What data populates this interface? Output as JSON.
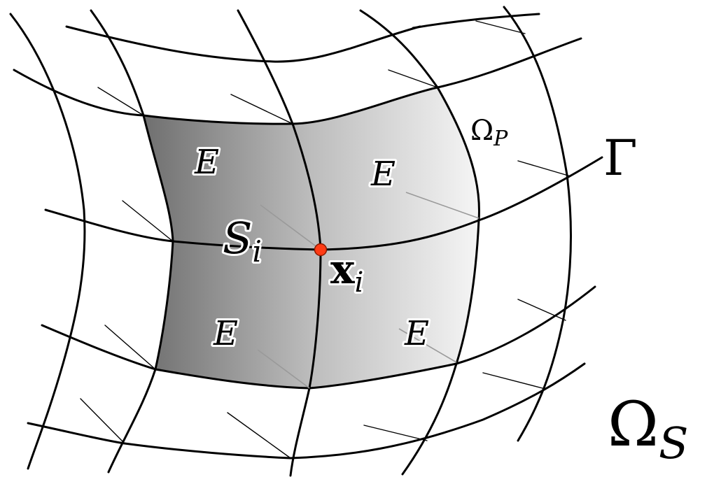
{
  "labels": {
    "element_label": "E",
    "omega_p": "Ω",
    "omega_p_sub": "P",
    "gamma": "Γ",
    "omega_s": "Ω",
    "omega_s_sub": "S",
    "s_i": "S",
    "s_i_sub": "i",
    "x_i": "x",
    "x_i_sub": "i"
  },
  "colors": {
    "node": "#ff3b14",
    "node_stroke": "#8a1a00",
    "patch_dark": "#6f6f6f",
    "patch_light": "#f6f6f6"
  }
}
